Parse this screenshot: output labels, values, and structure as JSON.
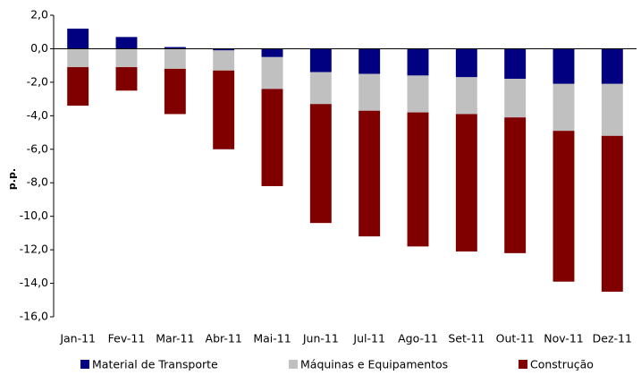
{
  "chart_data": {
    "type": "stacked_bar",
    "y_label": "p.p.",
    "categories": [
      "Jan-11",
      "Fev-11",
      "Mar-11",
      "Abr-11",
      "Mai-11",
      "Jun-11",
      "Jul-11",
      "Ago-11",
      "Set-11",
      "Out-11",
      "Nov-11",
      "Dez-11"
    ],
    "series": [
      {
        "name": "Material de Transporte",
        "color": "#000080",
        "values": [
          1.2,
          0.7,
          0.1,
          -0.1,
          -0.5,
          -1.4,
          -1.5,
          -1.6,
          -1.7,
          -1.8,
          -2.1,
          -2.1
        ]
      },
      {
        "name": "Máquinas e Equipamentos",
        "color": "#c0c0c0",
        "values": [
          -1.1,
          -1.1,
          -1.2,
          -1.2,
          -1.9,
          -1.9,
          -2.2,
          -2.2,
          -2.2,
          -2.3,
          -2.8,
          -3.1
        ]
      },
      {
        "name": "Construção",
        "color": "#800000",
        "values": [
          -2.3,
          -1.4,
          -2.7,
          -4.7,
          -5.8,
          -7.1,
          -7.5,
          -8.0,
          -8.2,
          -8.1,
          -9.0,
          -9.3
        ]
      }
    ],
    "ylim": [
      -16,
      2
    ],
    "yticks": [
      {
        "value": 2,
        "label": "2,0"
      },
      {
        "value": 0,
        "label": "0,0"
      },
      {
        "value": -2,
        "label": "-2,0"
      },
      {
        "value": -4,
        "label": "-4,0"
      },
      {
        "value": -6,
        "label": "-6,0"
      },
      {
        "value": -8,
        "label": "-8,0"
      },
      {
        "value": -10,
        "label": "-10,0"
      },
      {
        "value": -12,
        "label": "-12,0"
      },
      {
        "value": -14,
        "label": "-14,0"
      },
      {
        "value": -16,
        "label": "-16,0"
      }
    ],
    "legend": "bottom"
  }
}
